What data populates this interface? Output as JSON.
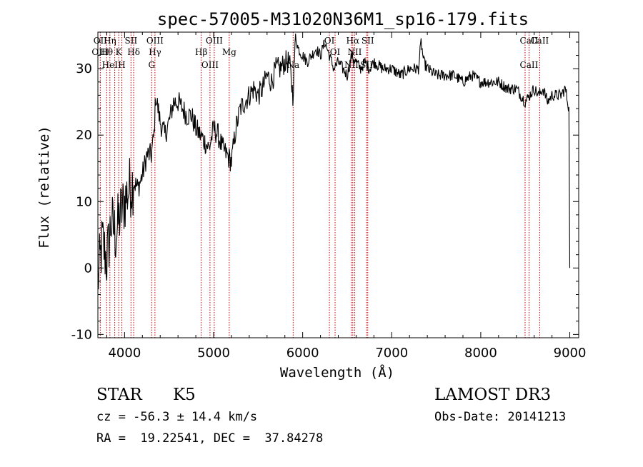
{
  "chart_data": {
    "type": "line",
    "title": "spec-57005-M31020N36M1_sp16-179.fits",
    "xlabel": "Wavelength (Å)",
    "ylabel": "Flux (relative)",
    "xlim": [
      3700,
      9100
    ],
    "ylim": [
      -10.5,
      35.5
    ],
    "xticks": [
      4000,
      5000,
      6000,
      7000,
      8000,
      9000
    ],
    "yticks": [
      -10,
      0,
      10,
      20,
      30
    ],
    "series": [
      {
        "name": "flux",
        "x": [
          3700,
          3750,
          3800,
          3850,
          3900,
          3950,
          4000,
          4050,
          4100,
          4150,
          4200,
          4250,
          4300,
          4330,
          4350,
          4400,
          4450,
          4500,
          4550,
          4600,
          4650,
          4700,
          4750,
          4800,
          4850,
          4900,
          4950,
          5000,
          5050,
          5100,
          5150,
          5200,
          5250,
          5300,
          5350,
          5400,
          5450,
          5500,
          5550,
          5600,
          5650,
          5700,
          5750,
          5800,
          5850,
          5890,
          5920,
          5950,
          6000,
          6050,
          6100,
          6150,
          6200,
          6250,
          6300,
          6350,
          6400,
          6450,
          6500,
          6550,
          6600,
          6650,
          6700,
          6750,
          6800,
          6900,
          7000,
          7100,
          7200,
          7300,
          7330,
          7360,
          7400,
          7500,
          7600,
          7700,
          7800,
          7900,
          8000,
          8100,
          8200,
          8300,
          8400,
          8500,
          8550,
          8600,
          8650,
          8700,
          8750,
          8800,
          8850,
          8900,
          8950,
          8990,
          9000
        ],
        "y": [
          -2,
          4,
          1,
          7,
          5,
          8,
          10,
          12,
          13,
          12,
          14,
          17,
          17,
          20,
          26,
          22,
          20,
          22,
          25,
          25,
          24,
          23,
          23,
          21,
          20,
          19,
          18,
          21,
          20,
          18,
          17,
          16,
          21,
          24,
          25,
          26,
          27,
          26,
          27,
          29,
          28,
          30,
          30,
          31,
          31,
          26,
          35,
          33,
          32,
          31,
          32,
          33,
          32,
          34,
          32,
          30,
          31,
          30,
          29,
          32,
          31,
          30,
          31,
          30,
          31,
          30,
          30,
          29,
          30,
          30,
          34,
          31,
          30,
          29,
          29,
          29,
          28,
          29,
          28,
          28,
          28,
          27,
          27,
          25,
          26,
          27,
          26,
          27,
          25,
          26,
          26,
          26,
          27,
          24,
          0
        ]
      }
    ],
    "lines": [
      {
        "wl": 3727,
        "labels": [
          "OII",
          "OIII"
        ]
      },
      {
        "wl": 3798,
        "labels": [
          "Hθ"
        ]
      },
      {
        "wl": 3835,
        "labels": [
          "HeI",
          "Hη"
        ]
      },
      {
        "wl": 3889,
        "labels": []
      },
      {
        "wl": 3934,
        "labels": [
          "K"
        ]
      },
      {
        "wl": 3969,
        "labels": [
          "H"
        ]
      },
      {
        "wl": 4072,
        "labels": [
          "SII"
        ]
      },
      {
        "wl": 4102,
        "labels": [
          "Hδ"
        ]
      },
      {
        "wl": 4304,
        "labels": [
          "G"
        ]
      },
      {
        "wl": 4341,
        "labels": [
          "OIII",
          "Hγ"
        ]
      },
      {
        "wl": 4861,
        "labels": [
          "Hβ"
        ]
      },
      {
        "wl": 4959,
        "labels": [
          "OIII"
        ]
      },
      {
        "wl": 5007,
        "labels": [
          "OIII"
        ]
      },
      {
        "wl": 5175,
        "labels": [
          "Mg"
        ]
      },
      {
        "wl": 5893,
        "labels": [
          "Na"
        ]
      },
      {
        "wl": 6300,
        "labels": [
          "OI"
        ]
      },
      {
        "wl": 6364,
        "labels": [
          "OI"
        ]
      },
      {
        "wl": 6548,
        "labels": [
          "NII"
        ]
      },
      {
        "wl": 6563,
        "labels": [
          "Hα"
        ]
      },
      {
        "wl": 6584,
        "labels": [
          "NII"
        ]
      },
      {
        "wl": 6717,
        "labels": [
          "SII"
        ]
      },
      {
        "wl": 6731,
        "labels": [
          "SII"
        ]
      },
      {
        "wl": 8498,
        "labels": []
      },
      {
        "wl": 8542,
        "labels": [
          "CaII",
          "CaII"
        ]
      },
      {
        "wl": 8662,
        "labels": [
          "CaII"
        ]
      }
    ]
  },
  "info": {
    "class": "STAR",
    "subclass": "K5",
    "survey": "LAMOST DR3",
    "cz": "cz = -56.3 ± 14.4 km/s",
    "obs_date": "Obs-Date: 20141213",
    "coords": "RA =  19.22541, DEC =  37.84278"
  },
  "colors": {
    "line_marker": "#cc0000",
    "spectrum": "#000000"
  }
}
